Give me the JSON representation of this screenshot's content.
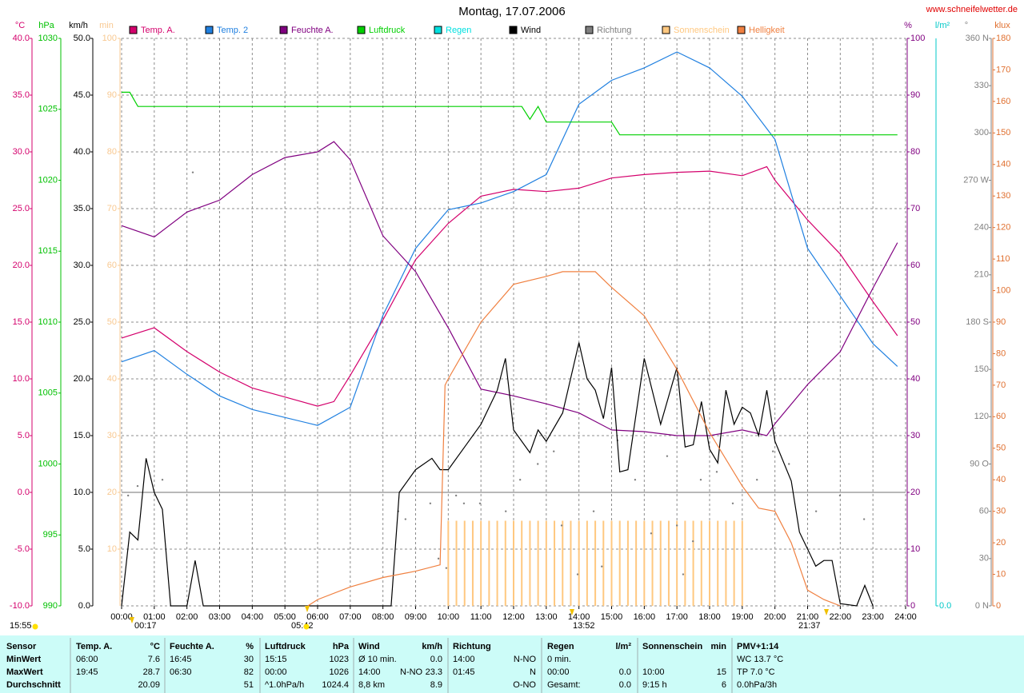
{
  "chart_data": {
    "type": "line",
    "title": "Montag, 17.07.2006",
    "source": "www.schneifelwetter.de",
    "xlim": [
      0,
      24
    ],
    "xticks": [
      {
        "value": 0,
        "label": "00:00"
      },
      {
        "value": 1,
        "label": "01:00"
      },
      {
        "value": 2,
        "label": "02:00"
      },
      {
        "value": 3,
        "label": "03:00"
      },
      {
        "value": 4,
        "label": "04:00"
      },
      {
        "value": 5,
        "label": "05:00"
      },
      {
        "value": 6,
        "label": "06:00"
      },
      {
        "value": 7,
        "label": "07:00"
      },
      {
        "value": 8,
        "label": "08:00"
      },
      {
        "value": 9,
        "label": "09:00"
      },
      {
        "value": 10,
        "label": "10:00"
      },
      {
        "value": 11,
        "label": "11:00"
      },
      {
        "value": 12,
        "label": "12:00"
      },
      {
        "value": 13,
        "label": "13:00"
      },
      {
        "value": 14,
        "label": "14:00"
      },
      {
        "value": 15,
        "label": "15:00"
      },
      {
        "value": 16,
        "label": "16:00"
      },
      {
        "value": 17,
        "label": "17:00"
      },
      {
        "value": 18,
        "label": "18:00"
      },
      {
        "value": 19,
        "label": "19:00"
      },
      {
        "value": 20,
        "label": "20:00"
      },
      {
        "value": 21,
        "label": "21:00"
      },
      {
        "value": 22,
        "label": "22:00"
      },
      {
        "value": 23,
        "label": "23:00"
      },
      {
        "value": 24,
        "label": "24:00"
      }
    ],
    "grid": true,
    "grid_axis": 2,
    "axes": [
      {
        "label": "°C",
        "color": "#d4006c",
        "lim": [
          -10,
          40
        ],
        "ticks": [
          {
            "value": 40,
            "label": "40.0"
          },
          {
            "value": 35,
            "label": "35.0"
          },
          {
            "value": 30,
            "label": "30.0"
          },
          {
            "value": 25,
            "label": "25.0"
          },
          {
            "value": 20,
            "label": "20.0"
          },
          {
            "value": 15,
            "label": "15.0"
          },
          {
            "value": 10,
            "label": "10.0"
          },
          {
            "value": 5,
            "label": "5.0"
          },
          {
            "value": 0,
            "label": "0.0"
          },
          {
            "value": -5,
            "label": "-5.0"
          },
          {
            "value": -10,
            "label": "-10.0"
          }
        ]
      },
      {
        "label": "hPa",
        "color": "#00c000",
        "lim": [
          990,
          1030
        ],
        "ticks": [
          1030,
          1025,
          1020,
          1015,
          1010,
          1005,
          1000,
          995,
          990
        ]
      },
      {
        "label": "km/h",
        "color": "#000000",
        "lim": [
          0,
          50
        ],
        "ticks": [
          {
            "value": 50,
            "label": "50.0"
          },
          {
            "value": 45,
            "label": "45.0"
          },
          {
            "value": 40,
            "label": "40.0"
          },
          {
            "value": 35,
            "label": "35.0"
          },
          {
            "value": 30,
            "label": "30.0"
          },
          {
            "value": 25,
            "label": "25.0"
          },
          {
            "value": 20,
            "label": "20.0"
          },
          {
            "value": 15,
            "label": "15.0"
          },
          {
            "value": 10,
            "label": "10.0"
          },
          {
            "value": 5,
            "label": "5.0"
          },
          {
            "value": 0,
            "label": "0.0"
          }
        ]
      },
      {
        "label": "min",
        "color": "#f8c890",
        "lim": [
          0,
          100
        ],
        "ticks": [
          100,
          90,
          80,
          70,
          60,
          50,
          40,
          30,
          20,
          10
        ]
      },
      {
        "label": "%",
        "color": "#800080",
        "lim": [
          0,
          100
        ],
        "ticks": [
          100,
          90,
          80,
          70,
          60,
          50,
          40,
          30,
          20,
          10,
          0
        ]
      },
      {
        "label": "l/m²",
        "color": "#00c8c8",
        "ticks": [
          {
            "value": 0,
            "label": "0.0"
          }
        ]
      },
      {
        "label": "°",
        "color": "#808080",
        "lim": [
          0,
          360
        ],
        "ticks": [
          {
            "value": 360,
            "label": "360 N"
          },
          330,
          300,
          {
            "value": 270,
            "label": "270 W"
          },
          240,
          210,
          {
            "value": 180,
            "label": "180 S"
          },
          150,
          120,
          {
            "value": 90,
            "label": "90 O"
          },
          60,
          30,
          {
            "value": 0,
            "label": "0 N"
          }
        ]
      },
      {
        "label": "klux",
        "color": "#e07030",
        "lim": [
          0,
          180
        ],
        "ticks": [
          180,
          170,
          160,
          150,
          140,
          130,
          120,
          110,
          100,
          90,
          80,
          70,
          60,
          50,
          40,
          30,
          20,
          10,
          0
        ]
      }
    ],
    "series": [
      {
        "name": "Temp. A.",
        "color": "#d4006c",
        "axis": 0,
        "style": "line",
        "x": [
          0,
          1,
          2,
          3,
          4,
          5,
          6,
          6.5,
          7,
          8,
          9,
          10,
          11,
          12,
          13,
          14,
          15,
          16,
          17,
          18,
          19,
          19.75,
          20,
          21,
          22,
          23,
          23.75
        ],
        "values": [
          13.6,
          14.5,
          12.4,
          10.6,
          9.2,
          8.4,
          7.6,
          8.0,
          10.3,
          15.2,
          20.5,
          23.7,
          26.1,
          26.7,
          26.5,
          26.8,
          27.7,
          28.0,
          28.2,
          28.3,
          27.9,
          28.7,
          27.5,
          24.0,
          21.0,
          16.8,
          13.8
        ]
      },
      {
        "name": "Temp. 2",
        "color": "#2080e0",
        "axis": 0,
        "style": "line",
        "x": [
          0,
          1,
          2,
          3,
          4,
          5,
          6,
          7,
          8,
          9,
          10,
          11,
          12,
          13,
          14,
          15,
          16,
          17,
          18,
          19,
          20,
          21,
          22,
          23,
          23.75
        ],
        "values": [
          11.5,
          12.5,
          10.4,
          8.5,
          7.3,
          6.6,
          5.9,
          7.5,
          15.6,
          21.5,
          24.9,
          25.5,
          26.5,
          28.0,
          34.2,
          36.3,
          37.4,
          38.8,
          37.4,
          34.9,
          31.1,
          21.5,
          17.3,
          13.1,
          11.1
        ]
      },
      {
        "name": "Feuchte A.",
        "color": "#800080",
        "axis": 4,
        "style": "line",
        "x": [
          0,
          1,
          2,
          3,
          4,
          5,
          6,
          6.5,
          7,
          8,
          9,
          10,
          11,
          12,
          13,
          14,
          15,
          16,
          17,
          18,
          19,
          19.75,
          20,
          21,
          22,
          23,
          23.75
        ],
        "values": [
          67,
          65,
          69.4,
          71.5,
          76,
          79,
          80,
          81.8,
          78.6,
          65.2,
          58.9,
          49,
          38.2,
          37,
          35.6,
          34,
          31,
          30.7,
          30,
          30,
          31,
          30,
          32.1,
          39,
          44.8,
          56,
          64
        ]
      },
      {
        "name": "Luftdruck",
        "color": "#00d000",
        "axis": 1,
        "style": "line",
        "x": [
          0,
          0.25,
          0.5,
          12.25,
          12.5,
          12.75,
          13,
          15,
          15.25,
          23.75
        ],
        "values": [
          1026.2,
          1026.2,
          1025.2,
          1025.2,
          1024.3,
          1025.2,
          1024.1,
          1024.1,
          1023.2,
          1023.2
        ]
      },
      {
        "name": "Regen",
        "color": "#00e0e0",
        "axis": 5,
        "style": "line",
        "x": [],
        "values": []
      },
      {
        "name": "Wind",
        "color": "#000000",
        "axis": 2,
        "style": "line",
        "x": [
          0,
          0.25,
          0.5,
          0.75,
          1,
          1.25,
          1.5,
          2,
          2.25,
          2.5,
          8.25,
          8.5,
          9,
          9.5,
          9.75,
          10,
          10.5,
          11,
          11.5,
          11.75,
          12,
          12.5,
          12.75,
          13,
          13.5,
          14,
          14.25,
          14.5,
          14.75,
          15,
          15.25,
          15.5,
          16,
          16.5,
          17,
          17.25,
          17.5,
          17.75,
          18,
          18.25,
          18.5,
          18.75,
          19,
          19.25,
          19.5,
          19.75,
          20,
          20.5,
          20.75,
          21.25,
          21.5,
          21.75,
          22,
          22.5,
          22.75,
          23
        ],
        "values": [
          0,
          6.5,
          5.8,
          13,
          10,
          8.5,
          0,
          0,
          4,
          0,
          0,
          10,
          12,
          13,
          12,
          12,
          14,
          16,
          19,
          21.8,
          15.5,
          13.5,
          15.5,
          14.5,
          17,
          23.2,
          20,
          19,
          16.5,
          21,
          11.8,
          12,
          21.8,
          16,
          21,
          14,
          14.2,
          18,
          13.8,
          12.6,
          19,
          16,
          17.5,
          17,
          15,
          19,
          14.5,
          11,
          6.5,
          3.5,
          4,
          4,
          0.2,
          0,
          1.8,
          0
        ]
      },
      {
        "name": "Richtung",
        "color": "#808080",
        "axis": 6,
        "style": "dots",
        "x": [
          0.2,
          0.49,
          1.25,
          2.18,
          8.47,
          8.69,
          9.45,
          9.7,
          9.94,
          10.24,
          10.48,
          10.97,
          11.76,
          12.2,
          12.74,
          13.23,
          13.47,
          13.96,
          14.45,
          14.7,
          15.18,
          15.72,
          16.21,
          16.7,
          17.0,
          17.19,
          17.49,
          17.73,
          18.22,
          18.71,
          19.45,
          19.94,
          20.43,
          21.26,
          21.99,
          22.73
        ],
        "values": [
          70,
          76,
          80,
          275,
          60,
          55,
          65,
          30,
          24,
          70,
          65,
          65,
          60,
          80,
          90,
          98,
          51,
          20,
          60,
          25,
          105,
          80,
          46,
          95,
          51,
          20,
          41,
          80,
          85,
          65,
          80,
          98,
          90,
          60,
          70,
          55
        ]
      },
      {
        "name": "Sonnenschein",
        "color": "#ffc880",
        "axis": 3,
        "style": "bars",
        "x": [
          10,
          10.25,
          10.5,
          10.75,
          11,
          11.25,
          11.5,
          11.75,
          12,
          12.25,
          12.5,
          12.75,
          13,
          13.25,
          13.5,
          13.75,
          14,
          14.25,
          14.5,
          14.75,
          15,
          15.25,
          15.5,
          15.75,
          16,
          16.25,
          16.5,
          16.75,
          17,
          17.25,
          17.5,
          17.75,
          18,
          18.25,
          18.5,
          18.75,
          19
        ],
        "values": [
          15,
          15,
          15,
          15,
          15,
          15,
          15,
          15,
          15,
          15,
          15,
          15,
          15,
          15,
          15,
          15,
          15,
          15,
          15,
          15,
          15,
          15,
          15,
          15,
          15,
          15,
          15,
          15,
          15,
          15,
          15,
          15,
          15,
          15,
          15,
          15,
          15
        ]
      },
      {
        "name": "Helligkeit",
        "color": "#f08040",
        "axis": 7,
        "style": "line",
        "x": [
          5.7,
          6,
          7,
          8,
          9,
          9.75,
          9.9,
          10,
          11,
          12,
          13,
          13.5,
          14,
          14.5,
          15,
          16,
          17,
          18,
          19,
          19.5,
          20,
          20.5,
          21,
          21.5,
          22
        ],
        "values": [
          0,
          2,
          6,
          9,
          11,
          13,
          70,
          72,
          90,
          102,
          104.5,
          106,
          106,
          106,
          101,
          92,
          75,
          55,
          38,
          31,
          30,
          20,
          5,
          2,
          0
        ]
      }
    ],
    "annotations": [
      "15:55",
      "00:17",
      "05:42",
      "13:52",
      "21:37"
    ]
  },
  "table": {
    "groups": [
      {
        "title": "Sensor",
        "rows": [
          [
            "MinWert",
            null,
            null
          ],
          [
            "MaxWert",
            null,
            null
          ],
          [
            "Durchschnitt",
            null,
            null
          ]
        ]
      },
      {
        "title": "Temp. A.",
        "unit": "°C",
        "rows": [
          [
            "06:00",
            null,
            "7.6"
          ],
          [
            "19:45",
            null,
            "28.7"
          ],
          [
            null,
            null,
            "20.09"
          ]
        ]
      },
      {
        "title": "Feuchte A.",
        "unit": "%",
        "rows": [
          [
            "16:45",
            null,
            "30"
          ],
          [
            "06:30",
            null,
            "82"
          ],
          [
            null,
            null,
            "51"
          ]
        ]
      },
      {
        "title": "Luftdruck",
        "unit": "hPa",
        "rows": [
          [
            "15:15",
            null,
            "1023"
          ],
          [
            "00:00",
            null,
            "1026"
          ],
          [
            "^1.0hPa/h",
            null,
            "1024.4"
          ]
        ]
      },
      {
        "title": "Wind",
        "unit": "km/h",
        "rows": [
          [
            "Ø 10 min.",
            null,
            "0.0"
          ],
          [
            "14:00",
            "N-NO",
            "23.3"
          ],
          [
            "8,8 km",
            null,
            "8.9"
          ]
        ]
      },
      {
        "title": "Richtung",
        "rows": [
          [
            "14:00",
            null,
            "N-NO"
          ],
          [
            "01:45",
            null,
            "N"
          ],
          [
            null,
            null,
            "O-NO"
          ]
        ]
      },
      {
        "title": "Regen",
        "unit": "l/m²",
        "rows": [
          [
            "0 min.",
            null,
            null
          ],
          [
            "00:00",
            null,
            "0.0"
          ],
          [
            "Gesamt:",
            null,
            "0.0"
          ]
        ]
      },
      {
        "title": "Sonnenschein",
        "unit": "min",
        "rows": [
          [
            null,
            null,
            null
          ],
          [
            "10:00",
            null,
            "15"
          ],
          [
            "9:15 h",
            null,
            "6"
          ]
        ]
      },
      {
        "title": "PMV+1:14",
        "rows": [
          [
            "WC 13.7 °C",
            null,
            null
          ],
          [
            "TP 7.0 °C",
            null,
            null
          ],
          [
            "0.0hPa/3h",
            null,
            null
          ]
        ]
      }
    ]
  }
}
